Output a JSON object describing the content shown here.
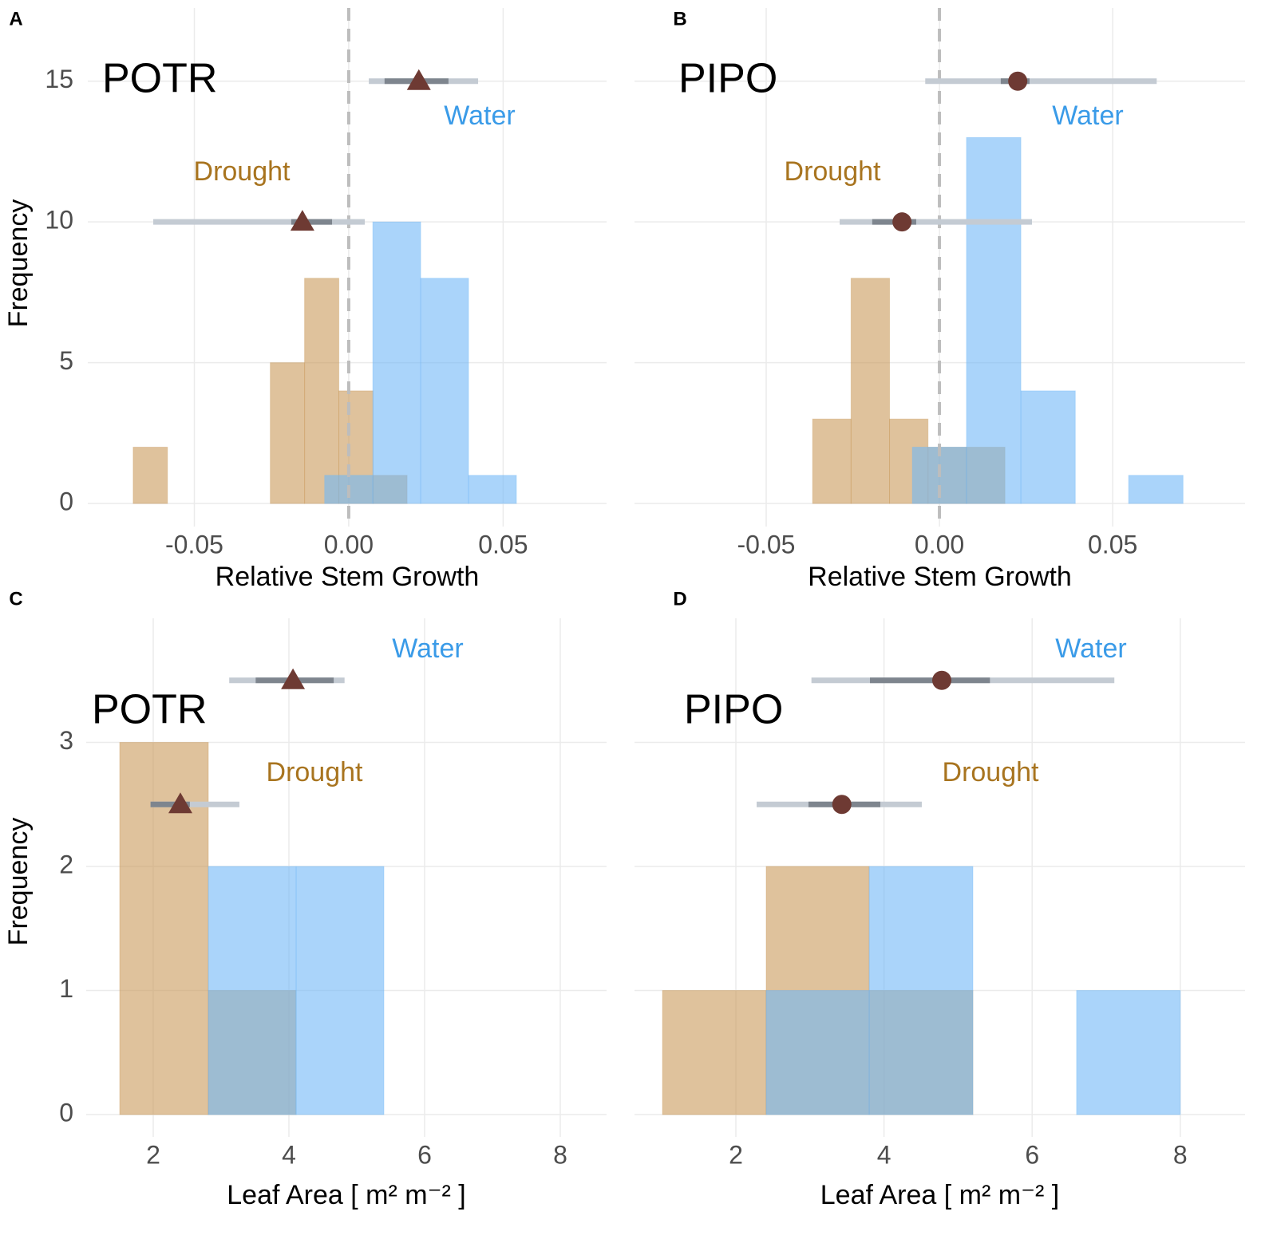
{
  "chart_data": [
    {
      "type": "histogram",
      "panel": "A",
      "title": "POTR",
      "x_label": "Relative Stem Growth",
      "y_label": "Frequency",
      "xlim": [
        -0.0845,
        0.0835
      ],
      "ylim": [
        -0.82,
        17.6
      ],
      "xticks": [
        -0.05,
        {
          "value": 0,
          "label": "0.00"
        },
        0.05
      ],
      "yticks": [
        0,
        5,
        10,
        15
      ],
      "ytick_labels": true,
      "grid": true,
      "vline": 0,
      "series": [
        {
          "name": "Drought",
          "color": "#c9995a",
          "label_color": "#a8741f",
          "bins": [
            -0.0698,
            -0.0587,
            -0.0476,
            -0.0365,
            -0.0254,
            -0.0143,
            -0.0032,
            0.0079,
            0.0189
          ],
          "values": [
            2,
            0,
            0,
            0,
            5,
            8,
            4,
            1
          ]
        },
        {
          "name": "Water",
          "color": "#71b7f7",
          "label_color": "#3a9be8",
          "bins": [
            -0.0078,
            0.0078,
            0.0233,
            0.0388,
            0.0543,
            0.0698
          ],
          "values": [
            1,
            10,
            8,
            1,
            0
          ]
        }
      ],
      "estimates": [
        {
          "series": "Drought",
          "marker": "triangle",
          "x": -0.015,
          "y": 10,
          "inner": [
            -0.0186,
            -0.0054
          ],
          "outer": [
            -0.0633,
            0.0052
          ]
        },
        {
          "series": "Water",
          "marker": "triangle",
          "x": 0.0227,
          "y": 15,
          "inner": [
            0.0116,
            0.0323
          ],
          "outer": [
            0.0065,
            0.0419
          ]
        }
      ]
    },
    {
      "type": "histogram",
      "panel": "B",
      "title": "PIPO",
      "x_label": "Relative Stem Growth",
      "xlim": [
        -0.088,
        0.0882
      ],
      "ylim": [
        -0.82,
        17.6
      ],
      "xticks": [
        -0.05,
        {
          "value": 0,
          "label": "0.00"
        },
        0.05
      ],
      "yticks": [
        0,
        5,
        10,
        15
      ],
      "ytick_labels": false,
      "grid": true,
      "vline": 0,
      "series": [
        {
          "name": "Drought",
          "color": "#c9995a",
          "label_color": "#a8741f",
          "bins": [
            -0.07,
            -0.0589,
            -0.0478,
            -0.0366,
            -0.0255,
            -0.0144,
            -0.0033,
            0.0078,
            0.0189
          ],
          "values": [
            0,
            0,
            0,
            3,
            8,
            3,
            2,
            2
          ]
        },
        {
          "name": "Water",
          "color": "#71b7f7",
          "label_color": "#3a9be8",
          "bins": [
            -0.0078,
            0.0078,
            0.0235,
            0.0392,
            0.0546,
            0.0703
          ],
          "values": [
            2,
            13,
            4,
            0,
            1
          ]
        }
      ],
      "estimates": [
        {
          "series": "Drought",
          "marker": "circle",
          "x": -0.0108,
          "y": 10,
          "inner": [
            -0.0194,
            -0.0067
          ],
          "outer": [
            -0.0288,
            0.0267
          ]
        },
        {
          "series": "Water",
          "marker": "circle",
          "x": 0.0226,
          "y": 15,
          "inner": [
            0.0177,
            0.026
          ],
          "outer": [
            -0.0041,
            0.0627
          ]
        }
      ]
    },
    {
      "type": "histogram",
      "panel": "C",
      "title": "POTR",
      "x_label": "Leaf Area  [ m² m⁻² ]",
      "y_label": "Frequency",
      "xlim": [
        1.012,
        8.682
      ],
      "ylim": [
        -0.18,
        4.0
      ],
      "xticks": [
        2,
        4,
        6,
        8
      ],
      "yticks": [
        0,
        1,
        2,
        3
      ],
      "ytick_labels": true,
      "grid": true,
      "series": [
        {
          "name": "Drought",
          "color": "#c9995a",
          "label_color": "#a8741f",
          "bins": [
            1.506,
            2.812,
            4.106
          ],
          "values": [
            3,
            1
          ]
        },
        {
          "name": "Water",
          "color": "#71b7f7",
          "label_color": "#3a9be8",
          "bins": [
            1.506,
            2.812,
            4.106,
            5.4,
            6.694,
            7.988
          ],
          "values": [
            0,
            2,
            2,
            0,
            0
          ]
        }
      ],
      "estimates": [
        {
          "series": "Drought",
          "marker": "triangle",
          "x": 2.4,
          "y": 2.5,
          "inner": [
            1.96,
            2.54
          ],
          "outer": [
            1.96,
            3.27
          ]
        },
        {
          "series": "Water",
          "marker": "triangle",
          "x": 4.06,
          "y": 3.5,
          "inner": [
            3.51,
            4.66
          ],
          "outer": [
            3.12,
            4.82
          ]
        }
      ]
    },
    {
      "type": "histogram",
      "panel": "D",
      "title": "PIPO",
      "x_label": "Leaf Area  [ m² m⁻² ]",
      "xlim": [
        0.631,
        8.875
      ],
      "ylim": [
        -0.18,
        4.0
      ],
      "xticks": [
        2,
        4,
        6,
        8
      ],
      "yticks": [
        0,
        1,
        2,
        3
      ],
      "ytick_labels": false,
      "grid": true,
      "series": [
        {
          "name": "Drought",
          "color": "#c9995a",
          "label_color": "#a8741f",
          "bins": [
            1.009,
            2.409,
            3.8,
            5.2
          ],
          "values": [
            1,
            2,
            1
          ]
        },
        {
          "name": "Water",
          "color": "#71b7f7",
          "label_color": "#3a9be8",
          "bins": [
            2.409,
            3.8,
            5.2,
            6.6,
            8.0
          ],
          "values": [
            1,
            2,
            0,
            1
          ]
        }
      ],
      "estimates": [
        {
          "series": "Drought",
          "marker": "circle",
          "x": 3.43,
          "y": 2.5,
          "inner": [
            2.98,
            3.95
          ],
          "outer": [
            2.28,
            4.51
          ]
        },
        {
          "series": "Water",
          "marker": "circle",
          "x": 4.78,
          "y": 3.5,
          "inner": [
            3.81,
            5.43
          ],
          "outer": [
            3.02,
            7.11
          ]
        }
      ]
    }
  ]
}
